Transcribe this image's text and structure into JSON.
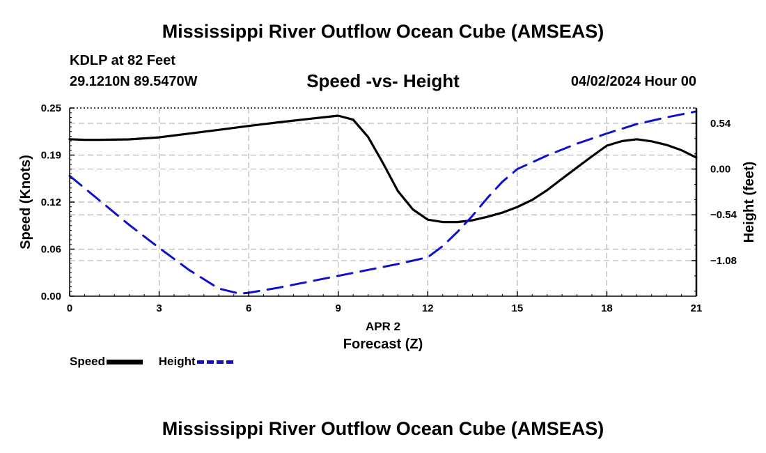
{
  "page": {
    "title": "Mississippi River Outflow Ocean Cube (AMSEAS)",
    "title_repeat": "Mississippi River Outflow Ocean Cube (AMSEAS)",
    "station": "KDLP at 82 Feet",
    "coordinates": "29.1210N  89.5470W",
    "subtitle": "Speed -vs- Height",
    "datetime": "04/02/2024 Hour 00"
  },
  "chart_data": {
    "type": "line",
    "title": "Speed -vs- Height",
    "xlabel": "Forecast (Z)",
    "x_date_label": "APR 2",
    "ylabel": "Speed (Knots)",
    "y2label": "Height (feet)",
    "xlim": [
      0,
      21
    ],
    "ylim": [
      0,
      0.25
    ],
    "y2lim": [
      -1.5,
      0.72
    ],
    "x_ticks": [
      0,
      3,
      6,
      9,
      12,
      15,
      18,
      21
    ],
    "x_tick_labels": [
      "0",
      "3",
      "6",
      "9",
      "12",
      "15",
      "18",
      "21"
    ],
    "y_ticks": [
      0,
      0.0625,
      0.125,
      0.1875,
      0.25
    ],
    "y_tick_labels": [
      "0.00",
      "0.06",
      "0.12",
      "0.19",
      "0.25"
    ],
    "y2_ticks": [
      0.54,
      0,
      -0.54,
      -1.08
    ],
    "y2_tick_labels": [
      "0.54",
      "0.00",
      "−0.54",
      "−1.08"
    ],
    "grid": true,
    "legend": "bottom-left",
    "series": [
      {
        "name": "Speed",
        "axis": "left",
        "color": "#000000",
        "style": "solid",
        "x": [
          0,
          0.5,
          1,
          2,
          3,
          4,
          5,
          6,
          7,
          8,
          9,
          9.5,
          10,
          10.5,
          11,
          11.5,
          12,
          12.5,
          13,
          13.5,
          14,
          14.5,
          15,
          15.5,
          16,
          16.5,
          17,
          17.5,
          18,
          18.5,
          19,
          19.5,
          20,
          20.5,
          21
        ],
        "values": [
          0.2085,
          0.2078,
          0.2078,
          0.2083,
          0.211,
          0.216,
          0.221,
          0.2262,
          0.231,
          0.2355,
          0.2398,
          0.2345,
          0.2115,
          0.1768,
          0.1396,
          0.1153,
          0.1017,
          0.0985,
          0.0985,
          0.1008,
          0.1055,
          0.111,
          0.1185,
          0.128,
          0.1408,
          0.156,
          0.171,
          0.1857,
          0.2,
          0.206,
          0.2085,
          0.2057,
          0.201,
          0.194,
          0.1841
        ]
      },
      {
        "name": "Height",
        "axis": "right",
        "color": "#1010cc",
        "style": "dashed",
        "x": [
          0,
          1,
          2,
          3,
          4,
          5,
          5.7,
          6,
          7,
          8,
          9,
          10,
          11,
          12,
          12.5,
          13,
          13.5,
          14,
          14.5,
          15,
          16,
          17,
          18,
          19,
          20,
          21
        ],
        "values": [
          -0.08,
          -0.37,
          -0.66,
          -0.93,
          -1.19,
          -1.41,
          -1.47,
          -1.46,
          -1.4,
          -1.33,
          -1.26,
          -1.19,
          -1.12,
          -1.04,
          -0.91,
          -0.74,
          -0.55,
          -0.34,
          -0.15,
          0.0,
          0.16,
          0.3,
          0.42,
          0.53,
          0.61,
          0.68
        ]
      }
    ]
  }
}
